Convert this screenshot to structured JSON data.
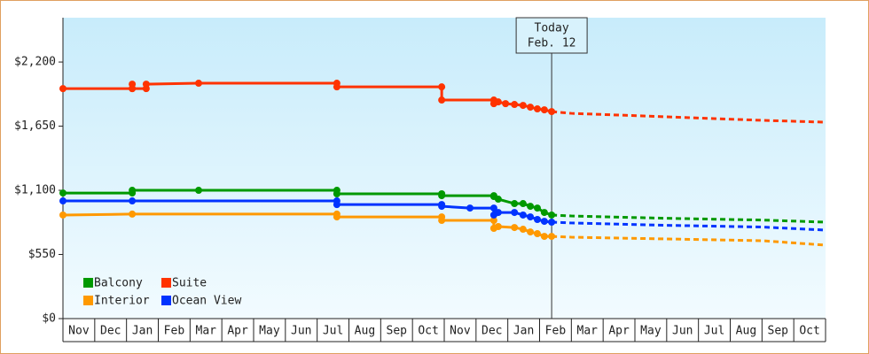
{
  "chart_data": {
    "type": "line",
    "categories": [
      "Nov",
      "Dec",
      "Jan",
      "Feb",
      "Mar",
      "Apr",
      "May",
      "Jun",
      "Jul",
      "Aug",
      "Sep",
      "Oct",
      "Nov",
      "Dec",
      "Jan",
      "Feb",
      "Mar",
      "Apr",
      "May",
      "Jun",
      "Jul",
      "Aug",
      "Sep",
      "Oct"
    ],
    "xlim": [
      0,
      24
    ],
    "ylim": [
      0,
      2580
    ],
    "yticks": [
      {
        "value": 0,
        "label": "$0"
      },
      {
        "value": 550,
        "label": "$550"
      },
      {
        "value": 1100,
        "label": "$1,100"
      },
      {
        "value": 1650,
        "label": "$1,650"
      },
      {
        "value": 2200,
        "label": "$2,200"
      }
    ],
    "annotation": {
      "lines": [
        "Today",
        "Feb. 12"
      ],
      "x": 15.38
    },
    "series": [
      {
        "name": "Balcony",
        "color": "#009900",
        "x": [
          0,
          2.18,
          2.18,
          4.27,
          8.62,
          8.62,
          11.92,
          11.92,
          13.56,
          13.56,
          13.7,
          14.21,
          14.48,
          14.71,
          14.93,
          15.15,
          15.38
        ],
        "values": [
          1077,
          1077,
          1100,
          1100,
          1100,
          1070,
          1070,
          1054,
          1054,
          1047,
          1024,
          986,
          986,
          963,
          948,
          910,
          888
        ],
        "forecast_x": [
          15.38,
          16,
          19,
          22,
          24
        ],
        "forecast_values": [
          888,
          880,
          860,
          845,
          827
        ]
      },
      {
        "name": "Suite",
        "color": "#ff3300",
        "x": [
          0,
          2.18,
          2.18,
          2.18,
          2.62,
          2.62,
          4.27,
          8.62,
          8.62,
          11.92,
          11.92,
          13.56,
          13.56,
          13.7,
          13.93,
          14.21,
          14.48,
          14.71,
          14.93,
          15.15,
          15.38
        ],
        "values": [
          1972,
          1972,
          2010,
          1972,
          1972,
          2010,
          2018,
          2018,
          1987,
          1987,
          1874,
          1874,
          1843,
          1858,
          1843,
          1836,
          1828,
          1813,
          1798,
          1790,
          1775
        ],
        "forecast_x": [
          15.38,
          16,
          19,
          22,
          24
        ],
        "forecast_values": [
          1775,
          1760,
          1730,
          1700,
          1684
        ]
      },
      {
        "name": "Interior",
        "color": "#ff9900",
        "x": [
          0,
          2.18,
          8.62,
          8.62,
          11.92,
          11.92,
          13.56,
          13.56,
          13.7,
          14.21,
          14.48,
          14.71,
          14.93,
          15.15,
          15.38
        ],
        "values": [
          888,
          896,
          896,
          872,
          872,
          842,
          842,
          774,
          789,
          781,
          766,
          743,
          728,
          705,
          705
        ],
        "forecast_x": [
          15.38,
          16,
          19,
          22,
          24
        ],
        "forecast_values": [
          705,
          698,
          683,
          668,
          630
        ]
      },
      {
        "name": "Ocean View",
        "color": "#0033ff",
        "x": [
          0,
          2.18,
          8.62,
          8.62,
          11.92,
          11.92,
          12.81,
          13.56,
          13.56,
          13.7,
          14.21,
          14.48,
          14.71,
          14.93,
          15.15,
          15.38
        ],
        "values": [
          1009,
          1009,
          1009,
          978,
          978,
          963,
          948,
          948,
          888,
          910,
          910,
          888,
          872,
          850,
          834,
          827
        ],
        "forecast_x": [
          15.38,
          16,
          19,
          22,
          24
        ],
        "forecast_values": [
          827,
          820,
          800,
          785,
          759
        ]
      }
    ]
  }
}
